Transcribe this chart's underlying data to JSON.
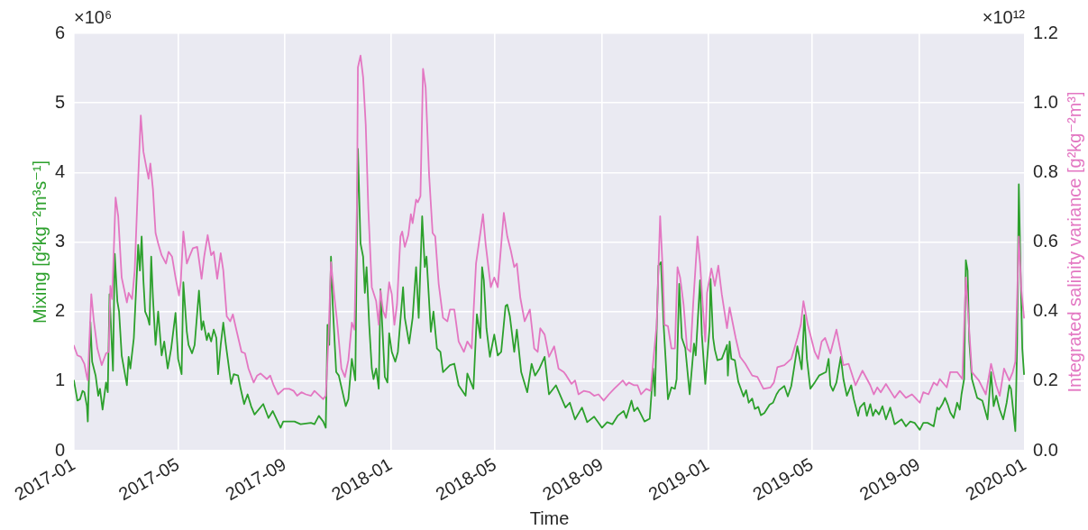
{
  "chart_data": {
    "type": "line",
    "xlabel": "Time",
    "ylabel": "Mixing [g²kg⁻²m³s⁻¹]",
    "y2label": "Integrated salinity variance [g²kg⁻²m³]",
    "annotations": [
      "×10⁶",
      "×10¹²"
    ],
    "xlim": [
      "2017-01",
      "2020-01"
    ],
    "xticks": [
      "2017-01",
      "2017-05",
      "2017-09",
      "2018-01",
      "2018-05",
      "2018-09",
      "2019-01",
      "2019-05",
      "2019-09",
      "2020-01"
    ],
    "ylim": [
      0,
      6
    ],
    "yticks": [
      0,
      1,
      2,
      3,
      4,
      5,
      6
    ],
    "y2lim": [
      0,
      1.2
    ],
    "y2ticks": [
      {
        "value": 0,
        "label": "0.0"
      },
      0.2,
      0.4,
      0.6,
      0.8,
      {
        "value": 1,
        "label": "1.0"
      },
      1.2
    ],
    "grid": true,
    "series": [
      {
        "color": "#2ca02c",
        "x": [
          "2017-01-01",
          "2017-01-05",
          "2017-01-08",
          "2017-01-11",
          "2017-01-13",
          "2017-01-16",
          "2017-01-17",
          "2017-01-20",
          "2017-01-22",
          "2017-01-26",
          "2017-01-29",
          "2017-01-31",
          "2017-02-03",
          "2017-02-07",
          "2017-02-09",
          "2017-02-11",
          "2017-02-15",
          "2017-02-17",
          "2017-02-20",
          "2017-02-22",
          "2017-02-25",
          "2017-03-03",
          "2017-03-05",
          "2017-03-07",
          "2017-03-11",
          "2017-03-16",
          "2017-03-18",
          "2017-03-20",
          "2017-03-22",
          "2017-03-24",
          "2017-03-27",
          "2017-03-29",
          "2017-03-31",
          "2017-04-02",
          "2017-04-05",
          "2017-04-08",
          "2017-04-12",
          "2017-04-15",
          "2017-04-19",
          "2017-04-23",
          "2017-04-28",
          "2017-05-01",
          "2017-05-05",
          "2017-05-07",
          "2017-05-11",
          "2017-05-13",
          "2017-05-17",
          "2017-05-20",
          "2017-05-25",
          "2017-05-28",
          "2017-05-30",
          "2017-06-03",
          "2017-06-05",
          "2017-06-08",
          "2017-06-11",
          "2017-06-14",
          "2017-06-16",
          "2017-06-19",
          "2017-06-22",
          "2017-06-25",
          "2017-07-01",
          "2017-07-04",
          "2017-07-09",
          "2017-07-12",
          "2017-07-16",
          "2017-07-20",
          "2017-07-24",
          "2017-07-28",
          "2017-08-07",
          "2017-08-13",
          "2017-08-18",
          "2017-08-27",
          "2017-08-30",
          "2017-09-12",
          "2017-09-19",
          "2017-10-01",
          "2017-10-05",
          "2017-10-10",
          "2017-10-15",
          "2017-10-18",
          "2017-10-20",
          "2017-10-22",
          "2017-10-24",
          "2017-10-26",
          "2017-10-30",
          "2017-11-02",
          "2017-11-10",
          "2017-11-13",
          "2017-11-17",
          "2017-11-21",
          "2017-11-24",
          "2017-11-27",
          "2017-11-30",
          "2017-12-02",
          "2017-12-04",
          "2017-12-07",
          "2017-12-10",
          "2017-12-12",
          "2017-12-15",
          "2017-12-18",
          "2017-12-20",
          "2017-12-22",
          "2017-12-25",
          "2017-12-28",
          "2017-12-30",
          "2018-01-02",
          "2018-01-06",
          "2018-01-09",
          "2018-01-15",
          "2018-01-17",
          "2018-01-22",
          "2018-01-26",
          "2018-01-30",
          "2018-02-02",
          "2018-02-06",
          "2018-02-09",
          "2018-02-11",
          "2018-02-16",
          "2018-02-19",
          "2018-02-23",
          "2018-02-27",
          "2018-03-02",
          "2018-03-10",
          "2018-03-15",
          "2018-03-20",
          "2018-03-28",
          "2018-03-30",
          "2018-04-06",
          "2018-04-10",
          "2018-04-14",
          "2018-04-16",
          "2018-04-18",
          "2018-04-21",
          "2018-04-25",
          "2018-04-30",
          "2018-05-04",
          "2018-05-08",
          "2018-05-13",
          "2018-05-15",
          "2018-05-18",
          "2018-05-23",
          "2018-05-26",
          "2018-05-31",
          "2018-06-07",
          "2018-06-12",
          "2018-06-16",
          "2018-06-21",
          "2018-06-27",
          "2018-07-02",
          "2018-07-10",
          "2018-07-21",
          "2018-07-26",
          "2018-08-01",
          "2018-08-09",
          "2018-08-15",
          "2018-08-23",
          "2018-09-01",
          "2018-09-07",
          "2018-09-13",
          "2018-09-19",
          "2018-09-26",
          "2018-09-29",
          "2018-10-05",
          "2018-10-08",
          "2018-10-12",
          "2018-10-20",
          "2018-10-26",
          "2018-10-30",
          "2018-11-01",
          "2018-11-05",
          "2018-11-08",
          "2018-11-11",
          "2018-11-16",
          "2018-11-20",
          "2018-11-24",
          "2018-11-26",
          "2018-11-29",
          "2018-12-02",
          "2018-12-06",
          "2018-12-11",
          "2018-12-16",
          "2018-12-18",
          "2018-12-23",
          "2018-12-25",
          "2018-12-29",
          "2019-01-03",
          "2019-01-04",
          "2019-01-07",
          "2019-01-09",
          "2019-01-12",
          "2019-01-17",
          "2019-01-23",
          "2019-01-24",
          "2019-01-26",
          "2019-01-28",
          "2019-02-01",
          "2019-02-05",
          "2019-02-11",
          "2019-02-14",
          "2019-02-17",
          "2019-02-21",
          "2019-02-24",
          "2019-02-28",
          "2019-03-03",
          "2019-03-07",
          "2019-03-13",
          "2019-03-17",
          "2019-03-21",
          "2019-03-24",
          "2019-03-30",
          "2019-04-03",
          "2019-04-07",
          "2019-04-10",
          "2019-04-14",
          "2019-04-19",
          "2019-04-22",
          "2019-04-25",
          "2019-04-29",
          "2019-05-04",
          "2019-05-09",
          "2019-05-17",
          "2019-05-20",
          "2019-05-22",
          "2019-05-25",
          "2019-05-29",
          "2019-06-03",
          "2019-06-06",
          "2019-06-10",
          "2019-06-15",
          "2019-06-18",
          "2019-06-23",
          "2019-06-25",
          "2019-06-30",
          "2019-07-03",
          "2019-07-07",
          "2019-07-10",
          "2019-07-13",
          "2019-07-17",
          "2019-07-21",
          "2019-07-25",
          "2019-07-30",
          "2019-08-04",
          "2019-08-12",
          "2019-08-17",
          "2019-08-22",
          "2019-08-27",
          "2019-09-02",
          "2019-09-06",
          "2019-09-11",
          "2019-09-18",
          "2019-09-22",
          "2019-09-24",
          "2019-09-28",
          "2019-10-01",
          "2019-10-04",
          "2019-10-07",
          "2019-10-11",
          "2019-10-15",
          "2019-10-18",
          "2019-10-20",
          "2019-10-23",
          "2019-10-25",
          "2019-10-27",
          "2019-10-29",
          "2019-11-01",
          "2019-11-07",
          "2019-11-13",
          "2019-11-19",
          "2019-11-23",
          "2019-11-26",
          "2019-11-29",
          "2019-12-03",
          "2019-12-07",
          "2019-12-11",
          "2019-12-14",
          "2019-12-16",
          "2019-12-18",
          "2019-12-21",
          "2019-12-23",
          "2019-12-25",
          "2019-12-27",
          "2019-12-29",
          "2019-12-31"
        ],
        "values": [
          1.01,
          0.72,
          0.74,
          0.86,
          0.84,
          0.64,
          0.42,
          1.85,
          1.28,
          1.08,
          0.79,
          0.89,
          0.59,
          0.98,
          0.84,
          2.25,
          1.15,
          2.83,
          2.15,
          2.0,
          1.37,
          0.94,
          1.35,
          1.18,
          1.62,
          2.96,
          2.59,
          3.08,
          2.45,
          2.0,
          1.91,
          1.81,
          2.79,
          2.2,
          1.52,
          2.0,
          1.37,
          1.57,
          1.18,
          1.47,
          1.98,
          1.32,
          1.1,
          2.42,
          1.71,
          1.52,
          1.4,
          1.52,
          2.3,
          1.74,
          1.86,
          1.59,
          1.69,
          1.57,
          1.74,
          1.62,
          1.1,
          1.52,
          1.84,
          1.52,
          0.96,
          1.1,
          1.08,
          0.89,
          0.67,
          0.81,
          0.64,
          0.52,
          0.67,
          0.47,
          0.57,
          0.33,
          0.42,
          0.42,
          0.38,
          0.4,
          0.38,
          0.5,
          0.42,
          0.33,
          1.81,
          1.52,
          2.79,
          2.1,
          1.13,
          1.08,
          0.64,
          0.74,
          1.32,
          1.01,
          4.34,
          2.98,
          2.79,
          2.27,
          2.64,
          1.81,
          1.18,
          1.03,
          1.18,
          0.89,
          2.32,
          1.81,
          1.06,
          0.98,
          1.69,
          1.42,
          1.28,
          1.42,
          2.35,
          1.91,
          1.54,
          1.91,
          2.64,
          1.91,
          3.37,
          2.64,
          2.79,
          1.71,
          2.0,
          1.47,
          1.42,
          1.13,
          1.23,
          1.25,
          0.94,
          0.79,
          1.11,
          0.89,
          1.96,
          1.62,
          2.64,
          2.45,
          1.76,
          1.35,
          1.67,
          1.37,
          1.42,
          2.08,
          2.1,
          1.93,
          1.42,
          1.74,
          1.13,
          0.84,
          1.25,
          1.08,
          1.18,
          1.35,
          0.81,
          0.94,
          0.62,
          0.69,
          0.45,
          0.62,
          0.41,
          0.49,
          0.33,
          0.41,
          0.38,
          0.5,
          0.57,
          0.47,
          0.72,
          0.57,
          0.62,
          0.42,
          0.46,
          1.18,
          0.79,
          2.66,
          2.71,
          1.81,
          0.74,
          0.91,
          0.89,
          1.03,
          2.4,
          1.62,
          1.47,
          0.81,
          1.54,
          1.37,
          2.45,
          1.67,
          0.96,
          1.79,
          2.47,
          1.62,
          1.45,
          1.3,
          1.32,
          1.52,
          1.08,
          1.57,
          1.32,
          1.3,
          0.99,
          0.78,
          0.87,
          0.69,
          0.75,
          0.6,
          0.63,
          0.51,
          0.54,
          0.66,
          0.69,
          0.81,
          0.87,
          0.93,
          0.78,
          0.93,
          1.17,
          1.5,
          1.17,
          1.95,
          1.32,
          0.89,
          0.98,
          1.08,
          1.13,
          1.32,
          0.94,
          0.86,
          0.98,
          1.35,
          1.03,
          0.79,
          0.94,
          0.74,
          0.5,
          0.62,
          0.69,
          0.5,
          0.67,
          0.5,
          0.59,
          0.52,
          0.64,
          0.45,
          0.62,
          0.38,
          0.45,
          0.35,
          0.42,
          0.4,
          0.3,
          0.4,
          0.4,
          0.35,
          0.62,
          0.59,
          0.67,
          0.76,
          0.67,
          0.55,
          0.47,
          0.69,
          0.59,
          0.81,
          1.03,
          2.74,
          2.59,
          1.57,
          1.03,
          0.76,
          0.72,
          0.45,
          1.13,
          0.64,
          0.79,
          0.59,
          0.45,
          0.69,
          0.94,
          0.89,
          0.64,
          0.28,
          1.52,
          3.83,
          2.59,
          1.47,
          1.1
        ]
      },
      {
        "color": "#e377c2",
        "axis": "y2",
        "x": [
          "2017-01-01",
          "2017-01-05",
          "2017-01-09",
          "2017-01-13",
          "2017-01-16",
          "2017-01-17",
          "2017-01-21",
          "2017-01-24",
          "2017-01-28",
          "2017-02-02",
          "2017-02-07",
          "2017-02-10",
          "2017-02-12",
          "2017-02-14",
          "2017-02-18",
          "2017-02-21",
          "2017-02-25",
          "2017-03-03",
          "2017-03-05",
          "2017-03-09",
          "2017-03-12",
          "2017-03-16",
          "2017-03-19",
          "2017-03-22",
          "2017-03-25",
          "2017-03-28",
          "2017-03-30",
          "2017-04-02",
          "2017-04-05",
          "2017-04-08",
          "2017-04-12",
          "2017-04-17",
          "2017-04-20",
          "2017-04-24",
          "2017-04-28",
          "2017-05-02",
          "2017-05-04",
          "2017-05-07",
          "2017-05-11",
          "2017-05-14",
          "2017-05-18",
          "2017-05-23",
          "2017-05-28",
          "2017-05-31",
          "2017-06-04",
          "2017-06-08",
          "2017-06-11",
          "2017-06-15",
          "2017-06-19",
          "2017-06-22",
          "2017-06-26",
          "2017-06-30",
          "2017-07-03",
          "2017-07-07",
          "2017-07-13",
          "2017-07-17",
          "2017-07-21",
          "2017-07-27",
          "2017-07-31",
          "2017-08-04",
          "2017-08-11",
          "2017-08-15",
          "2017-08-19",
          "2017-08-24",
          "2017-08-31",
          "2017-09-06",
          "2017-09-11",
          "2017-09-15",
          "2017-09-20",
          "2017-09-25",
          "2017-10-01",
          "2017-10-05",
          "2017-10-11",
          "2017-10-15",
          "2017-10-18",
          "2017-10-21",
          "2017-10-24",
          "2017-10-28",
          "2017-10-31",
          "2017-11-05",
          "2017-11-09",
          "2017-11-13",
          "2017-11-17",
          "2017-11-20",
          "2017-11-23",
          "2017-11-24",
          "2017-11-27",
          "2017-11-30",
          "2017-12-03",
          "2017-12-06",
          "2017-12-10",
          "2017-12-15",
          "2017-12-18",
          "2017-12-20",
          "2017-12-23",
          "2017-12-26",
          "2017-12-30",
          "2018-01-02",
          "2018-01-05",
          "2018-01-08",
          "2018-01-12",
          "2018-01-14",
          "2018-01-17",
          "2018-01-21",
          "2018-01-24",
          "2018-01-26",
          "2018-01-30",
          "2018-02-01",
          "2018-02-04",
          "2018-02-07",
          "2018-02-10",
          "2018-02-14",
          "2018-02-18",
          "2018-02-21",
          "2018-02-25",
          "2018-03-02",
          "2018-03-07",
          "2018-03-10",
          "2018-03-15",
          "2018-03-20",
          "2018-03-26",
          "2018-03-30",
          "2018-04-04",
          "2018-04-09",
          "2018-04-14",
          "2018-04-17",
          "2018-04-20",
          "2018-04-26",
          "2018-04-30",
          "2018-05-04",
          "2018-05-11",
          "2018-05-15",
          "2018-05-19",
          "2018-05-23",
          "2018-05-26",
          "2018-05-30",
          "2018-06-04",
          "2018-06-10",
          "2018-06-15",
          "2018-06-19",
          "2018-06-22",
          "2018-06-27",
          "2018-07-02",
          "2018-07-08",
          "2018-07-13",
          "2018-07-19",
          "2018-07-22",
          "2018-07-28",
          "2018-08-01",
          "2018-08-05",
          "2018-08-11",
          "2018-08-18",
          "2018-08-23",
          "2018-08-28",
          "2018-09-03",
          "2018-09-09",
          "2018-09-15",
          "2018-09-25",
          "2018-09-29",
          "2018-10-02",
          "2018-10-08",
          "2018-10-12",
          "2018-10-16",
          "2018-10-22",
          "2018-10-27",
          "2018-10-30",
          "2018-11-03",
          "2018-11-07",
          "2018-11-10",
          "2018-11-12",
          "2018-11-16",
          "2018-11-20",
          "2018-11-24",
          "2018-11-27",
          "2018-11-30",
          "2018-12-04",
          "2018-12-08",
          "2018-12-12",
          "2018-12-15",
          "2018-12-20",
          "2018-12-23",
          "2018-12-26",
          "2018-12-29",
          "2018-12-31",
          "2019-01-05",
          "2019-01-09",
          "2019-01-13",
          "2019-01-17",
          "2019-01-23",
          "2019-01-26",
          "2019-02-02",
          "2019-02-07",
          "2019-02-13",
          "2019-02-21",
          "2019-02-27",
          "2019-03-06",
          "2019-03-14",
          "2019-03-18",
          "2019-03-22",
          "2019-03-30",
          "2019-04-07",
          "2019-04-14",
          "2019-04-18",
          "2019-04-21",
          "2019-04-26",
          "2019-05-04",
          "2019-05-08",
          "2019-05-12",
          "2019-05-16",
          "2019-05-22",
          "2019-05-29",
          "2019-06-06",
          "2019-06-12",
          "2019-06-20",
          "2019-06-28",
          "2019-07-07",
          "2019-07-11",
          "2019-07-15",
          "2019-07-19",
          "2019-07-25",
          "2019-08-04",
          "2019-08-10",
          "2019-08-17",
          "2019-08-24",
          "2019-09-02",
          "2019-09-06",
          "2019-09-12",
          "2019-09-18",
          "2019-09-22",
          "2019-09-25",
          "2019-10-03",
          "2019-10-07",
          "2019-10-15",
          "2019-10-21",
          "2019-10-25",
          "2019-10-29",
          "2019-11-01",
          "2019-11-09",
          "2019-11-17",
          "2019-11-23",
          "2019-11-29",
          "2019-12-03",
          "2019-12-08",
          "2019-12-14",
          "2019-12-18",
          "2019-12-21",
          "2019-12-25",
          "2019-12-28",
          "2019-12-31"
        ],
        "values": [
          0.302,
          0.274,
          0.27,
          0.25,
          0.212,
          0.202,
          0.45,
          0.372,
          0.294,
          0.246,
          0.28,
          0.284,
          0.474,
          0.436,
          0.728,
          0.674,
          0.498,
          0.426,
          0.454,
          0.436,
          0.518,
          0.782,
          0.964,
          0.86,
          0.82,
          0.782,
          0.826,
          0.752,
          0.626,
          0.596,
          0.562,
          0.538,
          0.572,
          0.558,
          0.498,
          0.446,
          0.484,
          0.63,
          0.538,
          0.558,
          0.582,
          0.586,
          0.494,
          0.558,
          0.62,
          0.562,
          0.572,
          0.494,
          0.568,
          0.518,
          0.386,
          0.372,
          0.392,
          0.348,
          0.284,
          0.28,
          0.236,
          0.196,
          0.216,
          0.222,
          0.206,
          0.216,
          0.188,
          0.162,
          0.178,
          0.178,
          0.172,
          0.158,
          0.168,
          0.162,
          0.158,
          0.172,
          0.158,
          0.148,
          0.158,
          0.314,
          0.542,
          0.44,
          0.372,
          0.236,
          0.212,
          0.26,
          0.368,
          0.348,
          0.722,
          1.102,
          1.136,
          1.074,
          0.938,
          0.694,
          0.47,
          0.43,
          0.362,
          0.46,
          0.402,
          0.382,
          0.484,
          0.45,
          0.362,
          0.42,
          0.616,
          0.63,
          0.586,
          0.62,
          0.68,
          0.654,
          0.722,
          0.714,
          0.732,
          1.098,
          1.044,
          0.792,
          0.626,
          0.616,
          0.48,
          0.382,
          0.372,
          0.406,
          0.406,
          0.314,
          0.284,
          0.314,
          0.294,
          0.538,
          0.626,
          0.68,
          0.596,
          0.47,
          0.498,
          0.47,
          0.684,
          0.616,
          0.576,
          0.528,
          0.538,
          0.44,
          0.372,
          0.406,
          0.294,
          0.284,
          0.352,
          0.334,
          0.27,
          0.3,
          0.236,
          0.226,
          0.216,
          0.192,
          0.202,
          0.162,
          0.172,
          0.168,
          0.158,
          0.162,
          0.144,
          0.162,
          0.178,
          0.202,
          0.188,
          0.196,
          0.188,
          0.188,
          0.162,
          0.178,
          0.172,
          0.256,
          0.362,
          0.674,
          0.518,
          0.362,
          0.358,
          0.294,
          0.294,
          0.528,
          0.498,
          0.42,
          0.294,
          0.284,
          0.42,
          0.616,
          0.538,
          0.42,
          0.314,
          0.454,
          0.524,
          0.474,
          0.532,
          0.45,
          0.352,
          0.412,
          0.324,
          0.27,
          0.25,
          0.216,
          0.212,
          0.178,
          0.182,
          0.196,
          0.24,
          0.246,
          0.264,
          0.324,
          0.362,
          0.43,
          0.362,
          0.284,
          0.264,
          0.314,
          0.324,
          0.28,
          0.348,
          0.246,
          0.25,
          0.188,
          0.23,
          0.188,
          0.162,
          0.182,
          0.168,
          0.192,
          0.152,
          0.172,
          0.152,
          0.162,
          0.138,
          0.168,
          0.162,
          0.196,
          0.188,
          0.206,
          0.182,
          0.226,
          0.226,
          0.206,
          0.498,
          0.342,
          0.226,
          0.202,
          0.162,
          0.25,
          0.188,
          0.158,
          0.236,
          0.202,
          0.226,
          0.256,
          0.616,
          0.46,
          0.382
        ]
      }
    ]
  }
}
